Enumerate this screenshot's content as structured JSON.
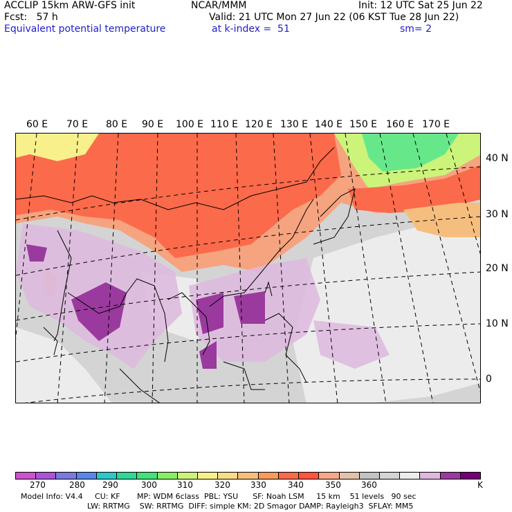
{
  "header": {
    "line1_left": "ACCLIP 15km ARW-GFS init",
    "line1_center": "NCAR/MMM",
    "line1_right": "Init: 12 UTC Sat 25 Jun 22",
    "line2_left": "Fcst:   57 h",
    "line2_right": "Valid: 21 UTC Mon 27 Jun 22 (06 KST Tue 28 Jun 22)",
    "line3_left": "Equivalent potential temperature",
    "line3_center": "at k-index =  51",
    "line3_right": "sm= 2"
  },
  "lon_labels": [
    "60 E",
    "70 E",
    "80 E",
    "90 E",
    "100 E",
    "110 E",
    "120 E",
    "130 E",
    "140 E",
    "150 E",
    "160 E",
    "170 E"
  ],
  "lat_labels": [
    "40 N",
    "30 N",
    "20 N",
    "10 N",
    "0"
  ],
  "colorbar": {
    "colors": [
      "#cc55cc",
      "#a855d8",
      "#7a7ae0",
      "#5a86e8",
      "#2cc8c8",
      "#30d898",
      "#44e07a",
      "#88ee66",
      "#ccf37a",
      "#f8f08a",
      "#f8dc88",
      "#f6be7e",
      "#f99a5e",
      "#fb6a4a",
      "#fe5540",
      "#f5a888",
      "#e2c2a8",
      "#c2c2c2",
      "#d4d4d4",
      "#ececec",
      "#deb8de",
      "#9a3a9e",
      "#740074"
    ],
    "tick_labels": [
      "270",
      "280",
      "290",
      "300",
      "310",
      "320",
      "330",
      "340",
      "350",
      "360"
    ],
    "unit": "K"
  },
  "footer": {
    "line1": "Model Info: V4.4     CU: KF       MP: WDM 6class  PBL: YSU      SF: Noah LSM     15 km    51 levels   90 sec",
    "line2": "LW: RRTMG    SW: RRTMG  DIFF: simple KM: 2D Smagor DAMP: Rayleigh3  SFLAY: MM5"
  }
}
